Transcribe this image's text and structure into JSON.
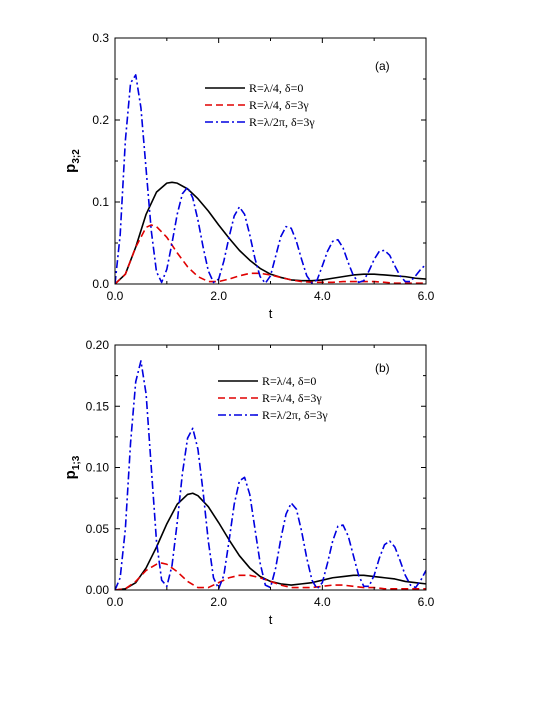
{
  "chart_data": [
    {
      "type": "line",
      "panel_label": "(a)",
      "xlabel": "t",
      "ylabel_main": "p",
      "ylabel_sub": "3;2",
      "xlim": [
        0,
        6
      ],
      "ylim": [
        0,
        0.3
      ],
      "x_ticks": [
        0,
        2,
        4,
        6
      ],
      "x_tick_labels": [
        "0.0",
        "2.0",
        "4.0",
        "6.0"
      ],
      "y_ticks": [
        0,
        0.1,
        0.2,
        0.3
      ],
      "y_tick_labels": [
        "0.0",
        "0.1",
        "0.2",
        "0.3"
      ],
      "legend_position": "upper-center",
      "series": [
        {
          "name": "R=λ/4, δ=0",
          "color": "#000000",
          "dash": "solid",
          "x": [
            0,
            0.2,
            0.4,
            0.6,
            0.8,
            1.0,
            1.1,
            1.2,
            1.4,
            1.6,
            1.8,
            2.0,
            2.2,
            2.4,
            2.6,
            2.8,
            3.0,
            3.2,
            3.4,
            3.6,
            3.8,
            4.0,
            4.2,
            4.4,
            4.6,
            4.8,
            5.0,
            5.2,
            5.4,
            5.6,
            5.8,
            6.0
          ],
          "y": [
            0,
            0.012,
            0.045,
            0.085,
            0.112,
            0.123,
            0.124,
            0.123,
            0.116,
            0.104,
            0.089,
            0.072,
            0.056,
            0.041,
            0.029,
            0.019,
            0.012,
            0.008,
            0.005,
            0.004,
            0.004,
            0.005,
            0.007,
            0.009,
            0.011,
            0.012,
            0.012,
            0.011,
            0.01,
            0.009,
            0.007,
            0.006
          ]
        },
        {
          "name": "R=λ/4, δ=3γ",
          "color": "#e00000",
          "dash": "dashed",
          "x": [
            0,
            0.2,
            0.4,
            0.6,
            0.7,
            0.8,
            1.0,
            1.2,
            1.4,
            1.6,
            1.8,
            2.0,
            2.2,
            2.4,
            2.6,
            2.8,
            3.0,
            3.2,
            3.4,
            3.6,
            3.8,
            4.0,
            4.2,
            4.4,
            4.6,
            4.8,
            5.0,
            5.2,
            5.4,
            5.6,
            5.8,
            6.0
          ],
          "y": [
            0,
            0.012,
            0.045,
            0.069,
            0.072,
            0.07,
            0.057,
            0.038,
            0.021,
            0.009,
            0.003,
            0.003,
            0.006,
            0.01,
            0.013,
            0.013,
            0.011,
            0.008,
            0.005,
            0.003,
            0.002,
            0.002,
            0.002,
            0.003,
            0.003,
            0.003,
            0.003,
            0.002,
            0.001,
            0.001,
            0.001,
            0.001
          ]
        },
        {
          "name": "R=λ/2π, δ=3γ",
          "color": "#0000e0",
          "dash": "dashdot",
          "x": [
            0,
            0.1,
            0.2,
            0.3,
            0.4,
            0.5,
            0.6,
            0.7,
            0.8,
            0.9,
            1.0,
            1.1,
            1.2,
            1.3,
            1.4,
            1.5,
            1.6,
            1.7,
            1.8,
            1.9,
            2.0,
            2.1,
            2.2,
            2.3,
            2.4,
            2.5,
            2.6,
            2.7,
            2.8,
            2.9,
            3.0,
            3.1,
            3.2,
            3.3,
            3.4,
            3.5,
            3.6,
            3.7,
            3.8,
            3.9,
            4.0,
            4.1,
            4.2,
            4.3,
            4.4,
            4.5,
            4.6,
            4.7,
            4.8,
            4.9,
            5.0,
            5.1,
            5.2,
            5.3,
            5.4,
            5.5,
            5.6,
            5.7,
            5.8,
            5.9,
            6.0
          ],
          "y": [
            0,
            0.06,
            0.175,
            0.245,
            0.255,
            0.215,
            0.14,
            0.065,
            0.015,
            0.002,
            0.018,
            0.05,
            0.085,
            0.11,
            0.118,
            0.105,
            0.078,
            0.045,
            0.016,
            0.002,
            0.006,
            0.028,
            0.057,
            0.083,
            0.094,
            0.085,
            0.06,
            0.031,
            0.009,
            0.001,
            0.01,
            0.034,
            0.058,
            0.07,
            0.068,
            0.052,
            0.03,
            0.01,
            0.001,
            0.005,
            0.022,
            0.04,
            0.052,
            0.054,
            0.044,
            0.026,
            0.01,
            0.002,
            0.004,
            0.016,
            0.03,
            0.04,
            0.041,
            0.035,
            0.022,
            0.01,
            0.003,
            0.003,
            0.01,
            0.018,
            0.024
          ]
        }
      ]
    },
    {
      "type": "line",
      "panel_label": "(b)",
      "xlabel": "t",
      "ylabel_main": "p",
      "ylabel_sub": "1;3",
      "xlim": [
        0,
        6
      ],
      "ylim": [
        0,
        0.2
      ],
      "x_ticks": [
        0,
        2,
        4,
        6
      ],
      "x_tick_labels": [
        "0.0",
        "2.0",
        "4.0",
        "6.0"
      ],
      "y_ticks": [
        0,
        0.05,
        0.1,
        0.15,
        0.2
      ],
      "y_tick_labels": [
        "0.00",
        "0.05",
        "0.10",
        "0.15",
        "0.20"
      ],
      "legend_position": "upper-right",
      "series": [
        {
          "name": "R=λ/4, δ=0",
          "color": "#000000",
          "dash": "solid",
          "x": [
            0,
            0.2,
            0.4,
            0.6,
            0.8,
            1.0,
            1.2,
            1.4,
            1.5,
            1.6,
            1.8,
            2.0,
            2.2,
            2.4,
            2.6,
            2.8,
            3.0,
            3.2,
            3.4,
            3.6,
            3.8,
            4.0,
            4.2,
            4.4,
            4.6,
            4.8,
            5.0,
            5.2,
            5.4,
            5.6,
            5.8,
            6.0
          ],
          "y": [
            0,
            0.001,
            0.006,
            0.018,
            0.035,
            0.054,
            0.07,
            0.078,
            0.079,
            0.077,
            0.068,
            0.055,
            0.041,
            0.028,
            0.018,
            0.011,
            0.007,
            0.005,
            0.004,
            0.005,
            0.006,
            0.008,
            0.01,
            0.011,
            0.012,
            0.012,
            0.011,
            0.01,
            0.009,
            0.007,
            0.006,
            0.005
          ]
        },
        {
          "name": "R=λ/4, δ=3γ",
          "color": "#e00000",
          "dash": "dashed",
          "x": [
            0,
            0.2,
            0.4,
            0.6,
            0.8,
            0.9,
            1.0,
            1.2,
            1.4,
            1.6,
            1.8,
            2.0,
            2.2,
            2.4,
            2.6,
            2.8,
            3.0,
            3.2,
            3.4,
            3.6,
            3.8,
            4.0,
            4.2,
            4.4,
            4.6,
            4.8,
            5.0,
            5.2,
            5.4,
            5.6,
            5.8,
            6.0
          ],
          "y": [
            0,
            0.001,
            0.007,
            0.016,
            0.021,
            0.022,
            0.021,
            0.015,
            0.007,
            0.002,
            0.002,
            0.006,
            0.01,
            0.012,
            0.012,
            0.01,
            0.007,
            0.004,
            0.002,
            0.002,
            0.002,
            0.003,
            0.004,
            0.004,
            0.003,
            0.002,
            0.002,
            0.001,
            0.001,
            0.001,
            0.001,
            0.001
          ]
        },
        {
          "name": "R=λ/2π, δ=3γ",
          "color": "#0000e0",
          "dash": "dashdot",
          "x": [
            0,
            0.1,
            0.2,
            0.3,
            0.4,
            0.5,
            0.6,
            0.7,
            0.8,
            0.9,
            1.0,
            1.1,
            1.2,
            1.3,
            1.4,
            1.5,
            1.6,
            1.7,
            1.8,
            1.9,
            2.0,
            2.1,
            2.2,
            2.3,
            2.4,
            2.5,
            2.6,
            2.7,
            2.8,
            2.9,
            3.0,
            3.1,
            3.2,
            3.3,
            3.4,
            3.5,
            3.6,
            3.7,
            3.8,
            3.9,
            4.0,
            4.1,
            4.2,
            4.3,
            4.4,
            4.5,
            4.6,
            4.7,
            4.8,
            4.9,
            5.0,
            5.1,
            5.2,
            5.3,
            5.4,
            5.5,
            5.6,
            5.7,
            5.8,
            5.9,
            6.0
          ],
          "y": [
            0,
            0.01,
            0.05,
            0.12,
            0.17,
            0.187,
            0.16,
            0.1,
            0.04,
            0.008,
            0.003,
            0.02,
            0.055,
            0.095,
            0.124,
            0.132,
            0.115,
            0.08,
            0.04,
            0.01,
            0.001,
            0.012,
            0.04,
            0.07,
            0.089,
            0.092,
            0.078,
            0.05,
            0.022,
            0.004,
            0.002,
            0.018,
            0.042,
            0.062,
            0.071,
            0.066,
            0.048,
            0.026,
            0.008,
            0.001,
            0.006,
            0.022,
            0.04,
            0.052,
            0.053,
            0.044,
            0.028,
            0.012,
            0.003,
            0.003,
            0.012,
            0.026,
            0.037,
            0.04,
            0.035,
            0.024,
            0.012,
            0.004,
            0.002,
            0.008,
            0.016
          ]
        }
      ]
    }
  ]
}
